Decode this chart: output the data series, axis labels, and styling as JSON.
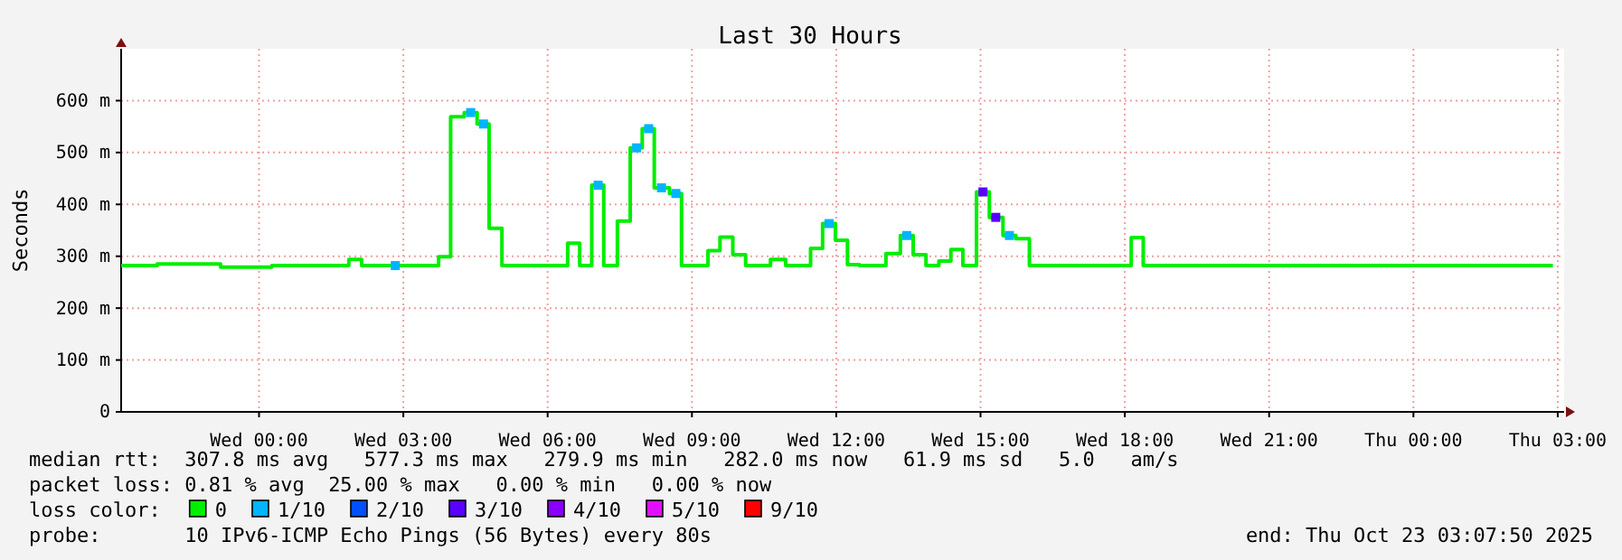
{
  "chart_data": {
    "type": "step",
    "title": "Last 30 Hours",
    "ylabel": "Seconds",
    "xlim": [
      "2025-10-21T21:08",
      "2025-10-23T03:08"
    ],
    "xticks": [
      {
        "value": "2025-10-22T00:00",
        "label": "Wed 00:00"
      },
      {
        "value": "2025-10-22T03:00",
        "label": "Wed 03:00"
      },
      {
        "value": "2025-10-22T06:00",
        "label": "Wed 06:00"
      },
      {
        "value": "2025-10-22T09:00",
        "label": "Wed 09:00"
      },
      {
        "value": "2025-10-22T12:00",
        "label": "Wed 12:00"
      },
      {
        "value": "2025-10-22T15:00",
        "label": "Wed 15:00"
      },
      {
        "value": "2025-10-22T18:00",
        "label": "Wed 18:00"
      },
      {
        "value": "2025-10-22T21:00",
        "label": "Wed 21:00"
      },
      {
        "value": "2025-10-23T00:00",
        "label": "Thu 00:00"
      },
      {
        "value": "2025-10-23T03:00",
        "label": "Thu 03:00"
      }
    ],
    "ylim": [
      0,
      700
    ],
    "yticks": [
      0,
      {
        "value": 100,
        "label": "100 m"
      },
      {
        "value": 200,
        "label": "200 m"
      },
      {
        "value": 300,
        "label": "300 m"
      },
      {
        "value": 400,
        "label": "400 m"
      },
      {
        "value": 500,
        "label": "500 m"
      },
      {
        "value": 600,
        "label": "600 m"
      }
    ],
    "grid": true,
    "legend": "bottom",
    "legend_title": "loss color:",
    "series": [
      {
        "name": "0",
        "color": "#00ee00",
        "x": [
          "2025-10-21T21:08",
          "2025-10-21T21:53",
          "2025-10-21T23:12",
          "2025-10-22T00:16",
          "2025-10-22T01:52",
          "2025-10-22T02:08",
          "2025-10-22T03:44",
          "2025-10-22T03:59",
          "2025-10-22T04:16",
          "2025-10-22T04:32",
          "2025-10-22T04:47",
          "2025-10-22T05:03",
          "2025-10-22T06:25",
          "2025-10-22T06:40",
          "2025-10-22T06:55",
          "2025-10-22T07:10",
          "2025-10-22T07:27",
          "2025-10-22T07:43",
          "2025-10-22T07:58",
          "2025-10-22T08:13",
          "2025-10-22T08:32",
          "2025-10-22T08:47",
          "2025-10-22T09:20",
          "2025-10-22T09:35",
          "2025-10-22T09:51",
          "2025-10-22T10:07",
          "2025-10-22T10:38",
          "2025-10-22T10:57",
          "2025-10-22T11:28",
          "2025-10-22T11:43",
          "2025-10-22T11:59",
          "2025-10-22T12:14",
          "2025-10-22T12:29",
          "2025-10-22T13:02",
          "2025-10-22T13:20",
          "2025-10-22T13:36",
          "2025-10-22T13:52",
          "2025-10-22T14:08",
          "2025-10-22T14:23",
          "2025-10-22T14:38",
          "2025-10-22T14:55",
          "2025-10-22T15:11",
          "2025-10-22T15:28",
          "2025-10-22T15:44",
          "2025-10-22T16:01",
          "2025-10-22T18:08",
          "2025-10-22T18:23",
          "2025-10-23T02:54"
        ],
        "values": [
          282,
          285,
          279,
          282,
          294,
          282,
          299,
          569,
          577,
          555,
          354,
          282,
          325,
          282,
          437,
          282,
          368,
          509,
          546,
          432,
          421,
          282,
          311,
          337,
          303,
          282,
          294,
          282,
          315,
          363,
          331,
          284,
          282,
          305,
          340,
          303,
          282,
          291,
          313,
          282,
          424,
          375,
          340,
          334,
          282,
          336,
          282,
          282
        ]
      },
      {
        "name": "1/10",
        "type": "scatter",
        "color": "#00b4ff",
        "x": [
          "2025-10-22T02:50",
          "2025-10-22T04:24",
          "2025-10-22T04:40",
          "2025-10-22T07:03",
          "2025-10-22T07:51",
          "2025-10-22T08:06",
          "2025-10-22T08:22",
          "2025-10-22T08:40",
          "2025-10-22T11:51",
          "2025-10-22T13:28",
          "2025-10-22T15:36"
        ],
        "values": [
          282,
          577,
          555,
          437,
          509,
          546,
          432,
          421,
          363,
          340,
          340
        ]
      },
      {
        "name": "2/10",
        "type": "scatter",
        "color": "#0050ff"
      },
      {
        "name": "3/10",
        "type": "scatter",
        "color": "#5a00ff",
        "x": [
          "2025-10-22T15:03",
          "2025-10-22T15:19"
        ],
        "values": [
          424,
          375
        ]
      },
      {
        "name": "4/10",
        "type": "scatter",
        "color": "#8a00ff"
      },
      {
        "name": "5/10",
        "type": "scatter",
        "color": "#e010ff"
      },
      {
        "name": "9/10",
        "type": "scatter",
        "color": "#ff0000"
      }
    ],
    "annotations": [
      "median rtt:  307.8 ms avg   577.3 ms max   279.9 ms min   282.0 ms now   61.9 ms sd   5.0   am/s",
      "packet loss: 0.81 % avg  25.00 % max   0.00 % min   0.00 % now",
      "probe:       10 IPv6-ICMP Echo Pings (56 Bytes) every 80s",
      "end: Thu Oct 23 03:07:50 2025"
    ]
  }
}
